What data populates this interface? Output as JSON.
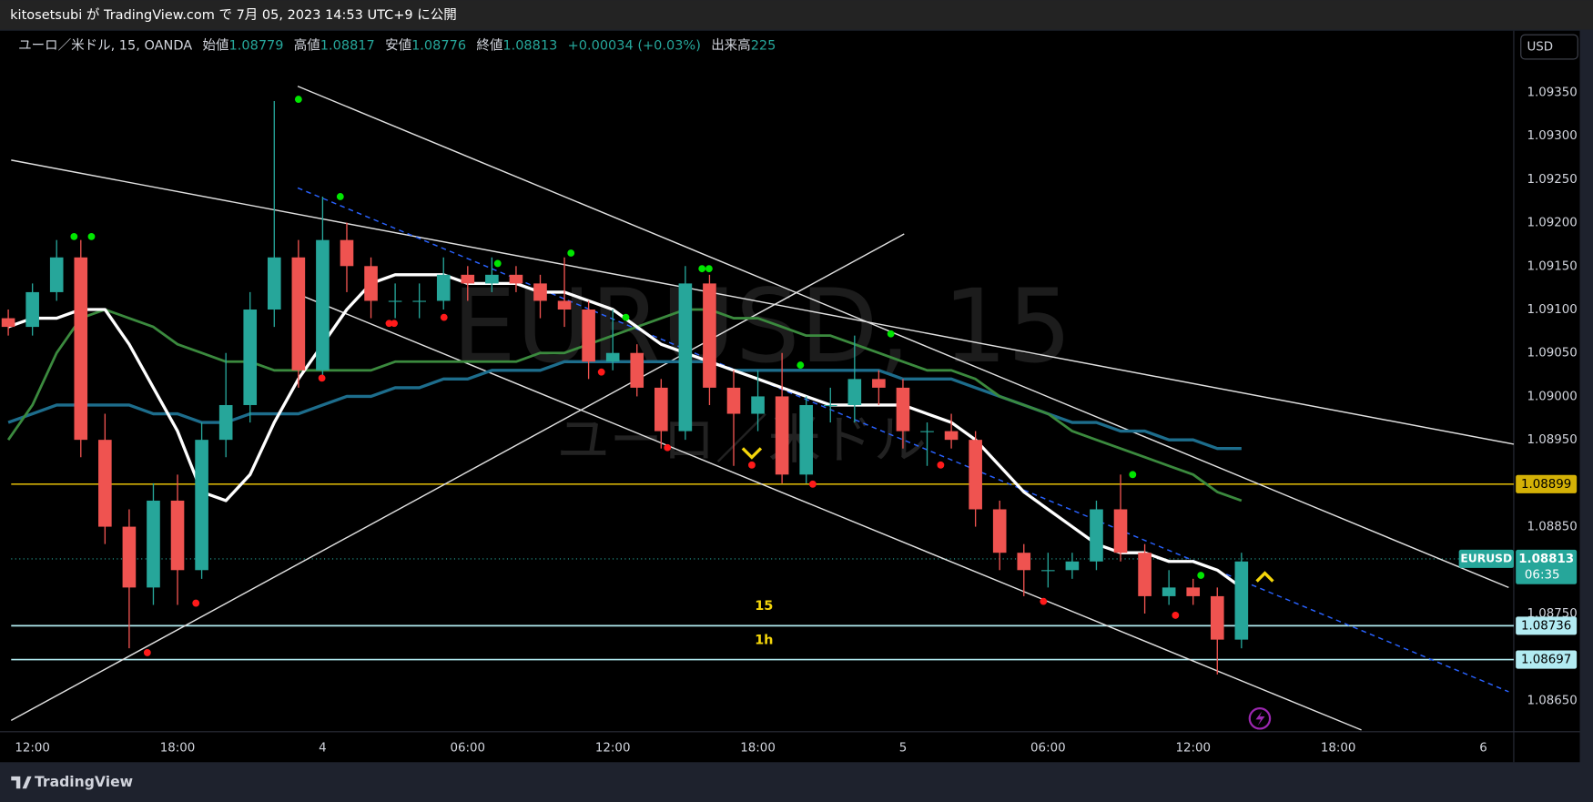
{
  "header": {
    "publish": "kitosetsubi が TradingView.com で 7月 05, 2023 14:53 UTC+9 に公開"
  },
  "chart_data": {
    "type": "candlestick",
    "symbol_title": "ユーロ／米ドル, 15, OANDA",
    "legend": {
      "open_label": "始値",
      "open": 1.08779,
      "high_label": "高値",
      "high": 1.08817,
      "low_label": "安値",
      "low": 1.08776,
      "close_label": "終値",
      "close": 1.08813,
      "change": "+0.00034 (+0.03%)",
      "volume_label": "出来高",
      "volume": 225
    },
    "watermark": "EURUSD, 15",
    "watermark_sub": "ユーロ／米ドル",
    "currency": "USD",
    "xlim": [
      -0.88,
      61.26
    ],
    "xticks": [
      {
        "value": 0,
        "label": "12:00"
      },
      {
        "value": 6,
        "label": "18:00"
      },
      {
        "value": 12,
        "label": "4"
      },
      {
        "value": 18,
        "label": "06:00"
      },
      {
        "value": 24,
        "label": "12:00"
      },
      {
        "value": 30,
        "label": "18:00"
      },
      {
        "value": 36,
        "label": "5"
      },
      {
        "value": 42,
        "label": "06:00"
      },
      {
        "value": 48,
        "label": "12:00"
      },
      {
        "value": 54,
        "label": "18:00"
      },
      {
        "value": 60,
        "label": "6"
      }
    ],
    "ylim": [
      1.08614,
      1.09421
    ],
    "yticks": [
      {
        "value": 1.0865,
        "label": "1.08650"
      },
      {
        "value": 1.0875,
        "label": "1.08750"
      },
      {
        "value": 1.0885,
        "label": "1.08850"
      },
      {
        "value": 1.0895,
        "label": "1.08950"
      },
      {
        "value": 1.09,
        "label": "1.09000"
      },
      {
        "value": 1.0905,
        "label": "1.09050"
      },
      {
        "value": 1.091,
        "label": "1.09100"
      },
      {
        "value": 1.0915,
        "label": "1.09150"
      },
      {
        "value": 1.092,
        "label": "1.09200"
      },
      {
        "value": 1.0925,
        "label": "1.09250"
      },
      {
        "value": 1.093,
        "label": "1.09300"
      },
      {
        "value": 1.0935,
        "label": "1.09350"
      }
    ],
    "up_color": "#26a69a",
    "down_color": "#ef5350",
    "x": [
      -1,
      0,
      1,
      2,
      3,
      4,
      5,
      6,
      7,
      8,
      9,
      10,
      11,
      12,
      13,
      14,
      15,
      16,
      17,
      18,
      19,
      20,
      21,
      22,
      23,
      24,
      25,
      26,
      27,
      28,
      29,
      30,
      31,
      32,
      33,
      34,
      35,
      36,
      37,
      38,
      39,
      40,
      41,
      42,
      43,
      44,
      45,
      46,
      47,
      48,
      49,
      50
    ],
    "open": [
      1.0909,
      1.0908,
      1.0912,
      1.0916,
      1.0895,
      1.0885,
      1.0878,
      1.0888,
      1.088,
      1.0895,
      1.0899,
      1.091,
      1.0916,
      1.0903,
      1.0918,
      1.0915,
      1.0911,
      1.0911,
      1.0911,
      1.0914,
      1.0913,
      1.0914,
      1.0913,
      1.0911,
      1.091,
      1.0904,
      1.0905,
      1.0901,
      1.0896,
      1.0913,
      1.0901,
      1.0898,
      1.09,
      1.0891,
      1.0899,
      1.0899,
      1.0902,
      1.0901,
      1.0896,
      1.0896,
      1.0895,
      1.0887,
      1.0882,
      1.088,
      1.088,
      1.0881,
      1.0887,
      1.0882,
      1.0877,
      1.0878,
      1.0877,
      1.0872
    ],
    "high": [
      1.091,
      1.0913,
      1.0918,
      1.0918,
      1.0898,
      1.0887,
      1.089,
      1.0891,
      1.0897,
      1.0905,
      1.0912,
      1.0934,
      1.0918,
      1.0923,
      1.092,
      1.0916,
      1.0913,
      1.0913,
      1.0916,
      1.0915,
      1.0916,
      1.0915,
      1.0914,
      1.0916,
      1.0911,
      1.091,
      1.0906,
      1.0902,
      1.0915,
      1.0914,
      1.0903,
      1.0903,
      1.0905,
      1.09,
      1.0901,
      1.0907,
      1.0903,
      1.0902,
      1.0897,
      1.0898,
      1.0896,
      1.0888,
      1.0883,
      1.0882,
      1.0882,
      1.0888,
      1.0891,
      1.0883,
      1.088,
      1.0879,
      1.0878,
      1.0882
    ],
    "low": [
      1.0907,
      1.0907,
      1.0911,
      1.0893,
      1.0883,
      1.0871,
      1.0876,
      1.0876,
      1.0879,
      1.0893,
      1.0897,
      1.0908,
      1.0901,
      1.0902,
      1.0912,
      1.0909,
      1.0909,
      1.0909,
      1.091,
      1.0911,
      1.0912,
      1.0912,
      1.0909,
      1.0908,
      1.0902,
      1.0903,
      1.09,
      1.0894,
      1.0895,
      1.0899,
      1.0892,
      1.0896,
      1.089,
      1.089,
      1.0897,
      1.0897,
      1.0899,
      1.0894,
      1.0892,
      1.0894,
      1.0885,
      1.088,
      1.0877,
      1.0878,
      1.0879,
      1.088,
      1.0881,
      1.0875,
      1.0876,
      1.0876,
      1.0868,
      1.0871
    ],
    "close": [
      1.0908,
      1.0912,
      1.0916,
      1.0895,
      1.0885,
      1.0878,
      1.0888,
      1.088,
      1.0895,
      1.0899,
      1.091,
      1.0916,
      1.0903,
      1.0918,
      1.0915,
      1.0911,
      1.0911,
      1.0911,
      1.0914,
      1.0913,
      1.0914,
      1.0913,
      1.0911,
      1.091,
      1.0904,
      1.0905,
      1.0901,
      1.0896,
      1.0913,
      1.0901,
      1.0898,
      1.09,
      1.0891,
      1.0899,
      1.0899,
      1.0902,
      1.0901,
      1.0896,
      1.0896,
      1.0895,
      1.0887,
      1.0882,
      1.088,
      1.088,
      1.0881,
      1.0887,
      1.0882,
      1.0877,
      1.0878,
      1.0877,
      1.0872,
      1.0881
    ],
    "overlays": [
      {
        "color": "#1d6d8c",
        "width": 3,
        "values": [
          1.0897,
          1.0898,
          1.0899,
          1.0899,
          1.0899,
          1.0899,
          1.0898,
          1.0898,
          1.0897,
          1.0897,
          1.0898,
          1.0898,
          1.0898,
          1.0899,
          1.09,
          1.09,
          1.0901,
          1.0901,
          1.0902,
          1.0902,
          1.0903,
          1.0903,
          1.0903,
          1.0904,
          1.0904,
          1.0904,
          1.0904,
          1.0904,
          1.0904,
          1.0904,
          1.0903,
          1.0903,
          1.0903,
          1.0903,
          1.0903,
          1.0903,
          1.0903,
          1.0902,
          1.0902,
          1.0902,
          1.0901,
          1.09,
          1.0899,
          1.0898,
          1.0897,
          1.0897,
          1.0896,
          1.0896,
          1.0895,
          1.0895,
          1.0894,
          1.0894
        ]
      },
      {
        "color": "#3b8a3e",
        "width": 2.5,
        "values": [
          1.0895,
          1.0899,
          1.0905,
          1.0909,
          1.091,
          1.0909,
          1.0908,
          1.0906,
          1.0905,
          1.0904,
          1.0904,
          1.0903,
          1.0903,
          1.0903,
          1.0903,
          1.0903,
          1.0904,
          1.0904,
          1.0904,
          1.0904,
          1.0904,
          1.0904,
          1.0905,
          1.0905,
          1.0906,
          1.0907,
          1.0908,
          1.0909,
          1.091,
          1.091,
          1.0909,
          1.0909,
          1.0908,
          1.0907,
          1.0907,
          1.0906,
          1.0905,
          1.0904,
          1.0903,
          1.0903,
          1.0902,
          1.09,
          1.0899,
          1.0898,
          1.0896,
          1.0895,
          1.0894,
          1.0893,
          1.0892,
          1.0891,
          1.0889,
          1.0888
        ]
      },
      {
        "color": "#ffffff",
        "width": 3,
        "values": [
          1.0908,
          1.0909,
          1.0909,
          1.091,
          1.091,
          1.0906,
          1.0901,
          1.0896,
          1.0889,
          1.0888,
          1.0891,
          1.0897,
          1.0902,
          1.0906,
          1.091,
          1.0913,
          1.0914,
          1.0914,
          1.0914,
          1.0913,
          1.0913,
          1.0913,
          1.0912,
          1.0912,
          1.0911,
          1.091,
          1.0908,
          1.0906,
          1.0905,
          1.0904,
          1.0903,
          1.0902,
          1.0901,
          1.09,
          1.0899,
          1.0899,
          1.0899,
          1.0899,
          1.0898,
          1.0897,
          1.0895,
          1.0892,
          1.0889,
          1.0887,
          1.0885,
          1.0883,
          1.0882,
          1.0882,
          1.0881,
          1.0881,
          1.088,
          1.0878
        ]
      }
    ],
    "hlines": [
      {
        "value": 1.08899,
        "color": "#d4b106"
      },
      {
        "value": 1.08736,
        "color": "#b2ebf2",
        "label": "15"
      },
      {
        "value": 1.08697,
        "color": "#b2ebf2",
        "label": "1h"
      }
    ],
    "last_price": {
      "value": 1.08813,
      "symbol": "EURUSD",
      "countdown": "06:35",
      "color": "#26a69a"
    },
    "trendlines": [
      {
        "x": [
          -0.88,
          61.26
        ],
        "y": [
          1.09272,
          1.08945
        ],
        "color": "#e0e0e0",
        "dash": false
      },
      {
        "x": [
          10.97,
          61.05
        ],
        "y": [
          1.09357,
          1.0878
        ],
        "color": "#e0e0e0",
        "dash": false
      },
      {
        "x": [
          11.05,
          54.96
        ],
        "y": [
          1.09117,
          1.08616
        ],
        "color": "#e0e0e0",
        "dash": false
      },
      {
        "x": [
          -0.88,
          36.05
        ],
        "y": [
          1.08627,
          1.09187
        ],
        "color": "#e0e0e0",
        "dash": false
      },
      {
        "x": [
          10.97,
          61.05
        ],
        "y": [
          1.0924,
          1.0866
        ],
        "color": "#2962ff",
        "dash": true
      }
    ],
    "pivot_highs": {
      "color": "#00e600",
      "x": [
        1.72,
        2.44,
        11.0,
        12.73,
        19.24,
        22.27,
        24.54,
        27.69,
        27.98,
        31.76,
        35.5,
        45.5,
        48.32
      ],
      "y": [
        1.09184,
        1.09184,
        1.09342,
        1.0923,
        1.09153,
        1.09165,
        1.09091,
        1.09147,
        1.09147,
        1.09036,
        1.09072,
        1.0891,
        1.08794
      ]
    },
    "pivot_lows": {
      "color": "#ff1a1a",
      "x": [
        4.75,
        6.76,
        11.97,
        14.75,
        14.96,
        17.02,
        23.53,
        26.26,
        29.75,
        32.27,
        37.56,
        41.81,
        47.27
      ],
      "y": [
        1.08705,
        1.08762,
        1.09021,
        1.09084,
        1.09084,
        1.09091,
        1.09028,
        1.08941,
        1.08921,
        1.08899,
        1.08921,
        1.08764,
        1.08748
      ]
    }
  },
  "footer": {
    "brand": "TradingView"
  }
}
